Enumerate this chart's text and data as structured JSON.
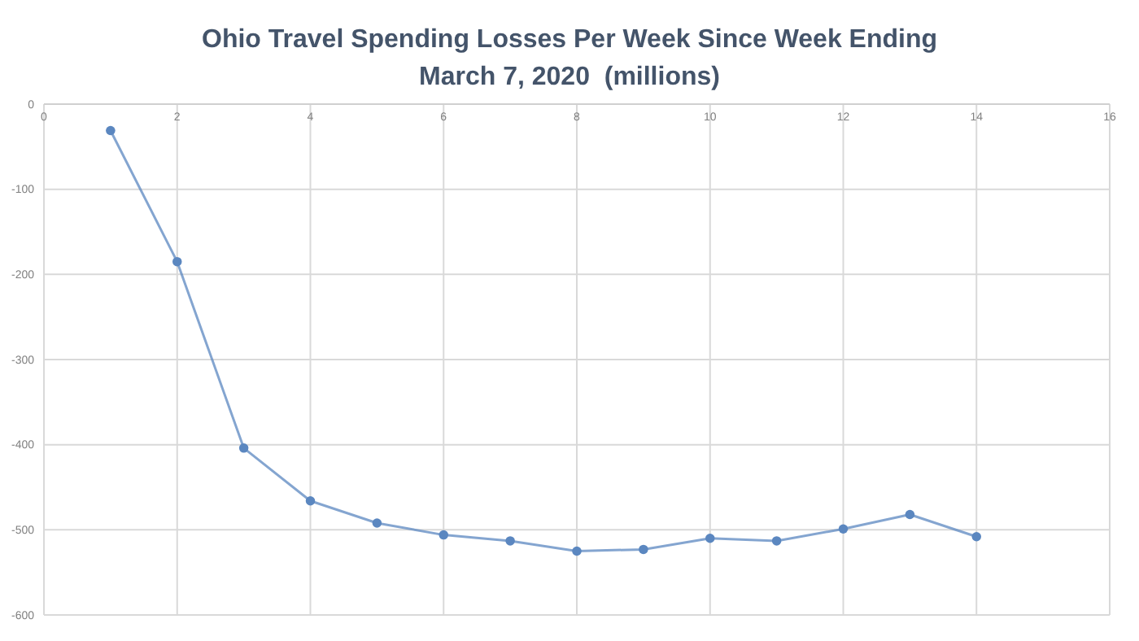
{
  "chart_data": {
    "type": "line",
    "title": "Ohio Travel Spending Losses Per Week Since Week Ending\nMarch 7, 2020  (millions)",
    "x": [
      1,
      2,
      3,
      4,
      5,
      6,
      7,
      8,
      9,
      10,
      11,
      12,
      13,
      14
    ],
    "series": [
      {
        "color": "#5b87c0",
        "values": [
          -31,
          -185,
          -404,
          -466,
          -492,
          -506,
          -513,
          -525,
          -523,
          -510,
          -513,
          -499,
          -482,
          -508
        ]
      }
    ],
    "xlim": [
      0,
      16
    ],
    "xticks": [
      0,
      2,
      4,
      6,
      8,
      10,
      12,
      14,
      16
    ],
    "ylim": [
      -600,
      0
    ],
    "yticks": [
      -600,
      -500,
      -400,
      -300,
      -200,
      -100,
      0
    ],
    "grid": true,
    "marker": "circle",
    "line_style": "solid"
  }
}
